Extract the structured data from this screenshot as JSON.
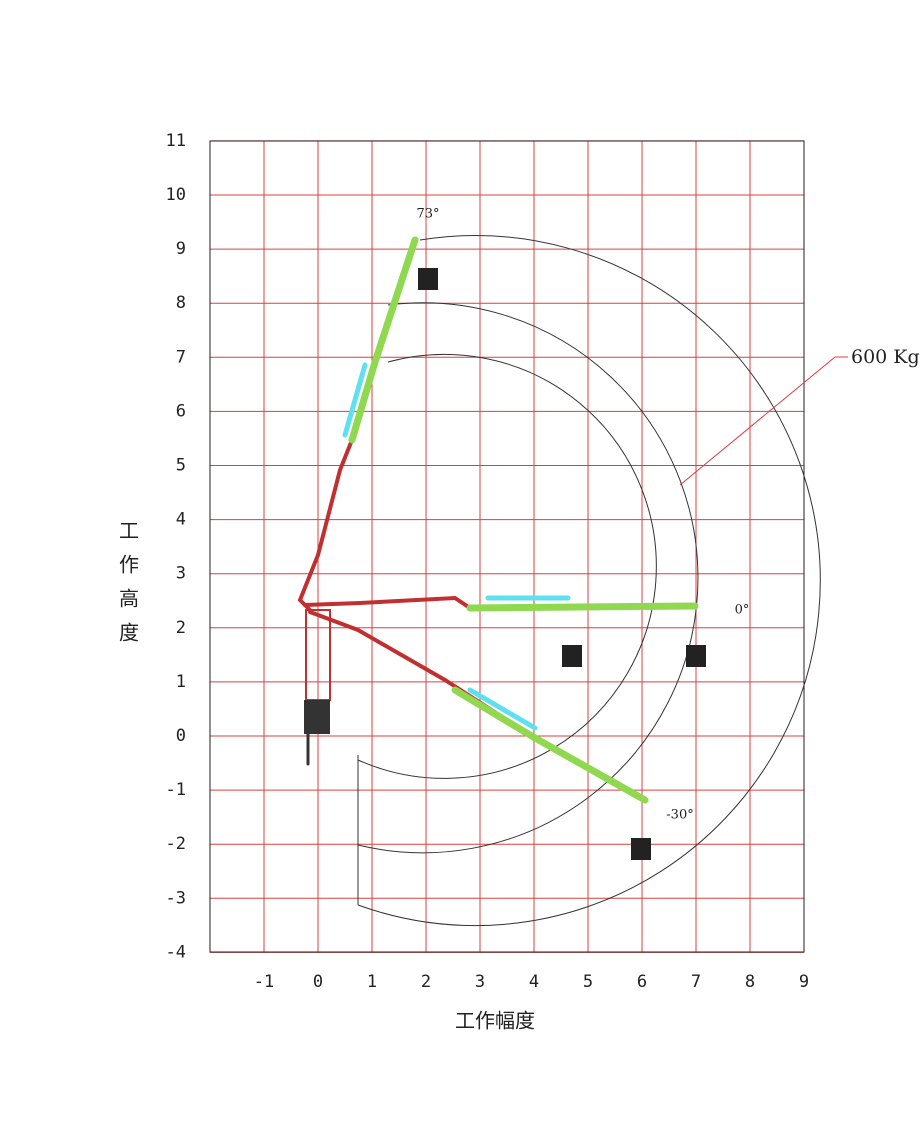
{
  "axes": {
    "x_label": "工作幅度",
    "y_label": "工作高度",
    "xticks": [
      -1,
      0,
      1,
      2,
      3,
      4,
      5,
      6,
      7,
      8,
      9
    ],
    "yticks": [
      11,
      10,
      9,
      8,
      7,
      6,
      5,
      4,
      3,
      2,
      1,
      0,
      -1,
      -2,
      -3,
      -4
    ]
  },
  "annotations": {
    "angle_top": "73°",
    "angle_mid": "0°",
    "angle_low": "-30°",
    "load": "600 Kg"
  }
}
